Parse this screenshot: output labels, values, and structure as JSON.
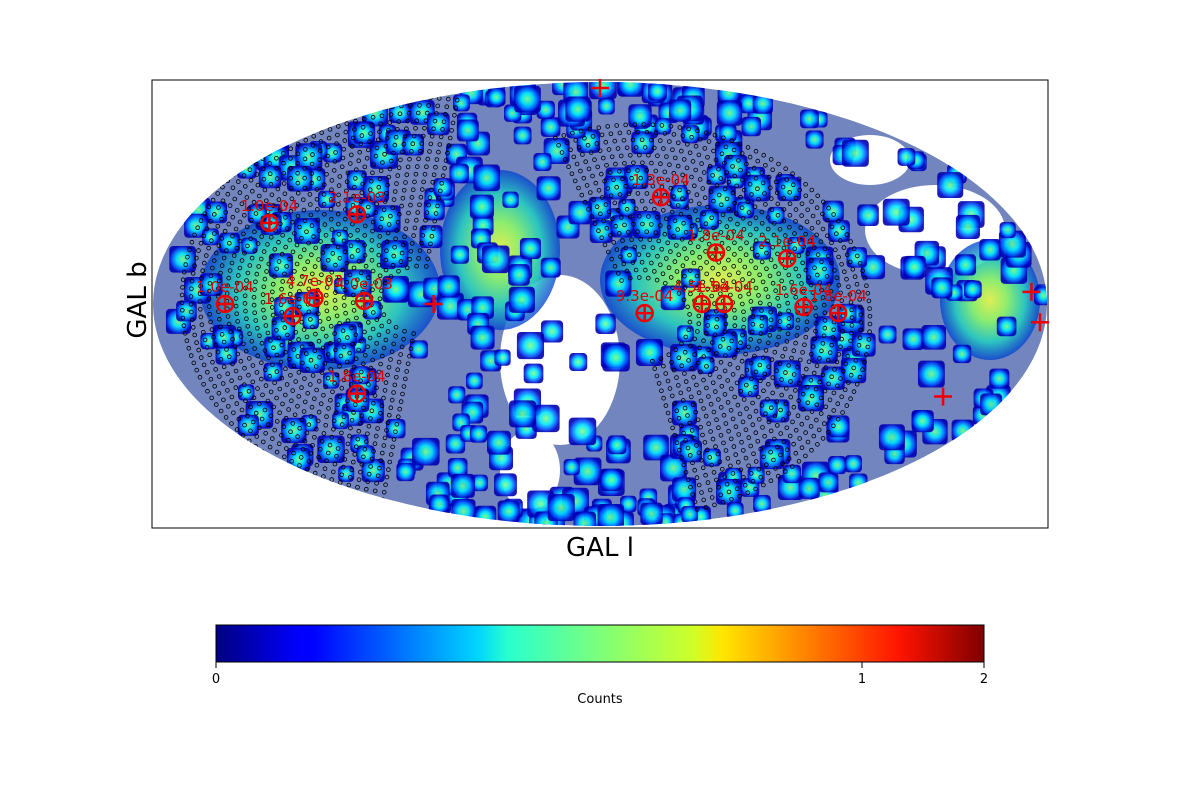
{
  "chart_data": {
    "type": "heatmap",
    "projection": "mollweide",
    "coordinate_frame": "galactic",
    "xlabel": "GAL l",
    "ylabel": "GAL b",
    "colormap": "jet",
    "colorbar": {
      "label": "Counts",
      "min": 0,
      "max": 2,
      "ticks": [
        "0",
        "1",
        "2"
      ],
      "tick_values": [
        0,
        1,
        2
      ]
    },
    "sources": [
      {
        "label": "1.0e-04",
        "l": 143,
        "b": 27
      },
      {
        "label": "2.1e-03",
        "l": 107,
        "b": 30
      },
      {
        "label": "1.0e-04",
        "l": 151,
        "b": 0
      },
      {
        "label": "1.6e-03",
        "l": 124,
        "b": -4
      },
      {
        "label": "4.7e-03",
        "l": 115,
        "b": 2
      },
      {
        "label": "4.0e-03",
        "l": 95,
        "b": 1
      },
      {
        "label": "1.8e-04",
        "l": 107,
        "b": -30
      },
      {
        "label": "1.3e-04",
        "l": -28,
        "b": 36
      },
      {
        "label": "1.8e-04",
        "l": -48,
        "b": 17
      },
      {
        "label": "2.1e-04",
        "l": -77,
        "b": 15
      },
      {
        "label": "9.3e-04",
        "l": -18,
        "b": -3
      },
      {
        "label": "4.5e-04",
        "l": -41,
        "b": 0
      },
      {
        "label": "1.5e-04",
        "l": -50,
        "b": 0
      },
      {
        "label": "1.6e-04",
        "l": -82,
        "b": -1
      },
      {
        "label": "1.8e-04",
        "l": -96,
        "b": -3
      }
    ],
    "crosses": [
      {
        "l": 0,
        "b": 88
      },
      {
        "l": 67,
        "b": 0
      },
      {
        "l": -174,
        "b": 4
      },
      {
        "l": -180,
        "b": -6
      },
      {
        "l": -152,
        "b": -31
      }
    ],
    "grid": false,
    "colorbar_position": "bottom"
  }
}
